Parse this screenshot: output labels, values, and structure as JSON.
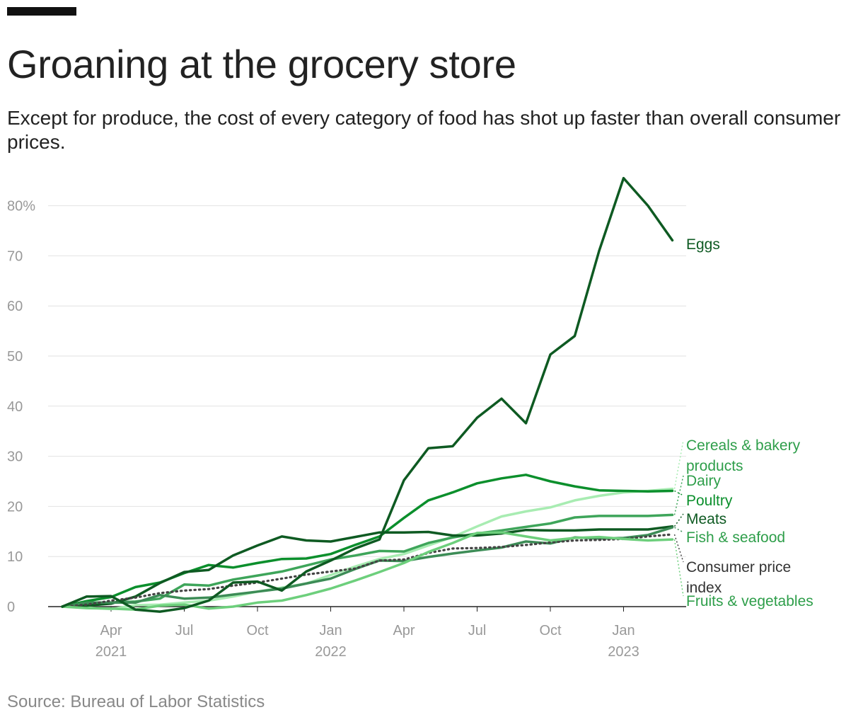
{
  "title": "Groaning at the grocery store",
  "subtitle": "Except for produce, the cost of every category of food has shot up faster than overall consumer prices.",
  "source": "Source: Bureau of Labor Statistics",
  "chart_data": {
    "type": "line",
    "ylim": [
      0,
      85
    ],
    "yticks": [
      0,
      10,
      20,
      30,
      40,
      50,
      60,
      70,
      80
    ],
    "ytick_labels": [
      "0",
      "10",
      "20",
      "30",
      "40",
      "50",
      "60",
      "70",
      "80%"
    ],
    "x_count": 26,
    "x_start": "Jan 2021",
    "x_end": "Feb 2023",
    "xticks": [
      {
        "index": 2,
        "label": "Apr",
        "year": "2021"
      },
      {
        "index": 5,
        "label": "Jul",
        "year": ""
      },
      {
        "index": 8,
        "label": "Oct",
        "year": ""
      },
      {
        "index": 11,
        "label": "Jan",
        "year": "2022"
      },
      {
        "index": 14,
        "label": "Apr",
        "year": ""
      },
      {
        "index": 17,
        "label": "Jul",
        "year": ""
      },
      {
        "index": 20,
        "label": "Oct",
        "year": ""
      },
      {
        "index": 23,
        "label": "Jan",
        "year": "2023"
      }
    ],
    "series": [
      {
        "name": "Cereals & bakery products",
        "label_lines": [
          "Cereals & bakery",
          "products"
        ],
        "color": "#a8ecb2",
        "label_color": "#2e9e4a",
        "dashed": false,
        "values": [
          0,
          -0.2,
          -0.5,
          0.3,
          0.4,
          0.8,
          1.2,
          2.0,
          3.0,
          3.8,
          4.6,
          6.3,
          8.0,
          9.5,
          10.5,
          12.2,
          13.9,
          16.0,
          18.0,
          19.0,
          19.8,
          21.2,
          22.1,
          22.8,
          23.1,
          23.5
        ]
      },
      {
        "name": "Dairy",
        "label_lines": [
          "Dairy"
        ],
        "color": "#3ea55a",
        "label_color": "#2e9e4a",
        "dashed": false,
        "values": [
          0,
          0.3,
          0.8,
          1.0,
          1.6,
          4.4,
          4.2,
          5.4,
          6.2,
          7.0,
          8.2,
          9.4,
          10.2,
          11.1,
          11.0,
          12.7,
          13.8,
          14.6,
          15.2,
          15.9,
          16.6,
          17.8,
          18.1,
          18.1,
          18.1,
          18.3
        ]
      },
      {
        "name": "Poultry",
        "label_lines": [
          "Poultry"
        ],
        "color": "#0b8f2c",
        "label_color": "#0b8f2c",
        "dashed": false,
        "values": [
          0,
          1.1,
          1.9,
          3.9,
          4.8,
          6.7,
          8.3,
          7.8,
          8.7,
          9.5,
          9.6,
          10.5,
          12.3,
          14.0,
          17.7,
          21.2,
          22.8,
          24.6,
          25.6,
          26.3,
          25.0,
          24.0,
          23.2,
          23.1,
          23.0,
          23.1
        ]
      },
      {
        "name": "Meats",
        "label_lines": [
          "Meats"
        ],
        "color": "#0e5a22",
        "label_color": "#0e5a22",
        "dashed": false,
        "values": [
          0,
          0.2,
          0.6,
          2.0,
          4.7,
          6.9,
          7.3,
          10.2,
          12.2,
          14.0,
          13.2,
          13.0,
          13.9,
          14.8,
          14.8,
          14.9,
          14.2,
          14.2,
          14.6,
          15.3,
          15.2,
          15.2,
          15.4,
          15.4,
          15.4,
          16.0
        ]
      },
      {
        "name": "Fish & seafood",
        "label_lines": [
          "Fish & seafood"
        ],
        "color": "#3c8c56",
        "label_color": "#2e9e4a",
        "dashed": false,
        "values": [
          0,
          0.8,
          0.8,
          0.8,
          2.3,
          1.6,
          1.8,
          2.4,
          3.0,
          3.6,
          4.6,
          5.6,
          7.5,
          9.2,
          9.1,
          9.9,
          10.6,
          11.2,
          11.8,
          13.0,
          12.6,
          13.8,
          13.6,
          13.7,
          14.3,
          15.8
        ]
      },
      {
        "name": "Consumer price index",
        "label_lines": [
          "Consumer price",
          "index"
        ],
        "color": "#444444",
        "label_color": "#333333",
        "dashed": true,
        "values": [
          0,
          0.4,
          1.2,
          1.8,
          2.7,
          3.2,
          3.5,
          4.2,
          4.8,
          5.6,
          6.4,
          7.0,
          7.6,
          9.2,
          9.4,
          10.7,
          11.6,
          11.7,
          11.9,
          12.3,
          12.8,
          13.2,
          13.3,
          13.5,
          14.0,
          14.4
        ]
      },
      {
        "name": "Fruits & vegetables",
        "label_lines": [
          "Fruits & vegetables"
        ],
        "color": "#6dcf7c",
        "label_color": "#2e9e4a",
        "dashed": false,
        "values": [
          0,
          -0.3,
          -0.4,
          -0.6,
          0.2,
          0.4,
          -0.4,
          0.0,
          0.8,
          1.2,
          2.3,
          3.6,
          5.2,
          6.9,
          8.7,
          10.9,
          12.7,
          14.7,
          14.8,
          14.0,
          13.2,
          13.7,
          13.9,
          13.5,
          13.2,
          13.4
        ]
      },
      {
        "name": "Eggs",
        "label_lines": [
          "Eggs"
        ],
        "color": "#0e5a22",
        "label_color": "#0e5a22",
        "dashed": false,
        "values": [
          0,
          2.0,
          2.1,
          -0.6,
          -1.0,
          -0.3,
          1.2,
          4.8,
          5.0,
          3.2,
          7.0,
          9.2,
          11.6,
          13.4,
          25.2,
          31.6,
          32.0,
          37.7,
          41.5,
          36.6,
          50.3,
          54.0,
          71.0,
          85.5,
          80.0,
          73.1
        ]
      }
    ]
  }
}
